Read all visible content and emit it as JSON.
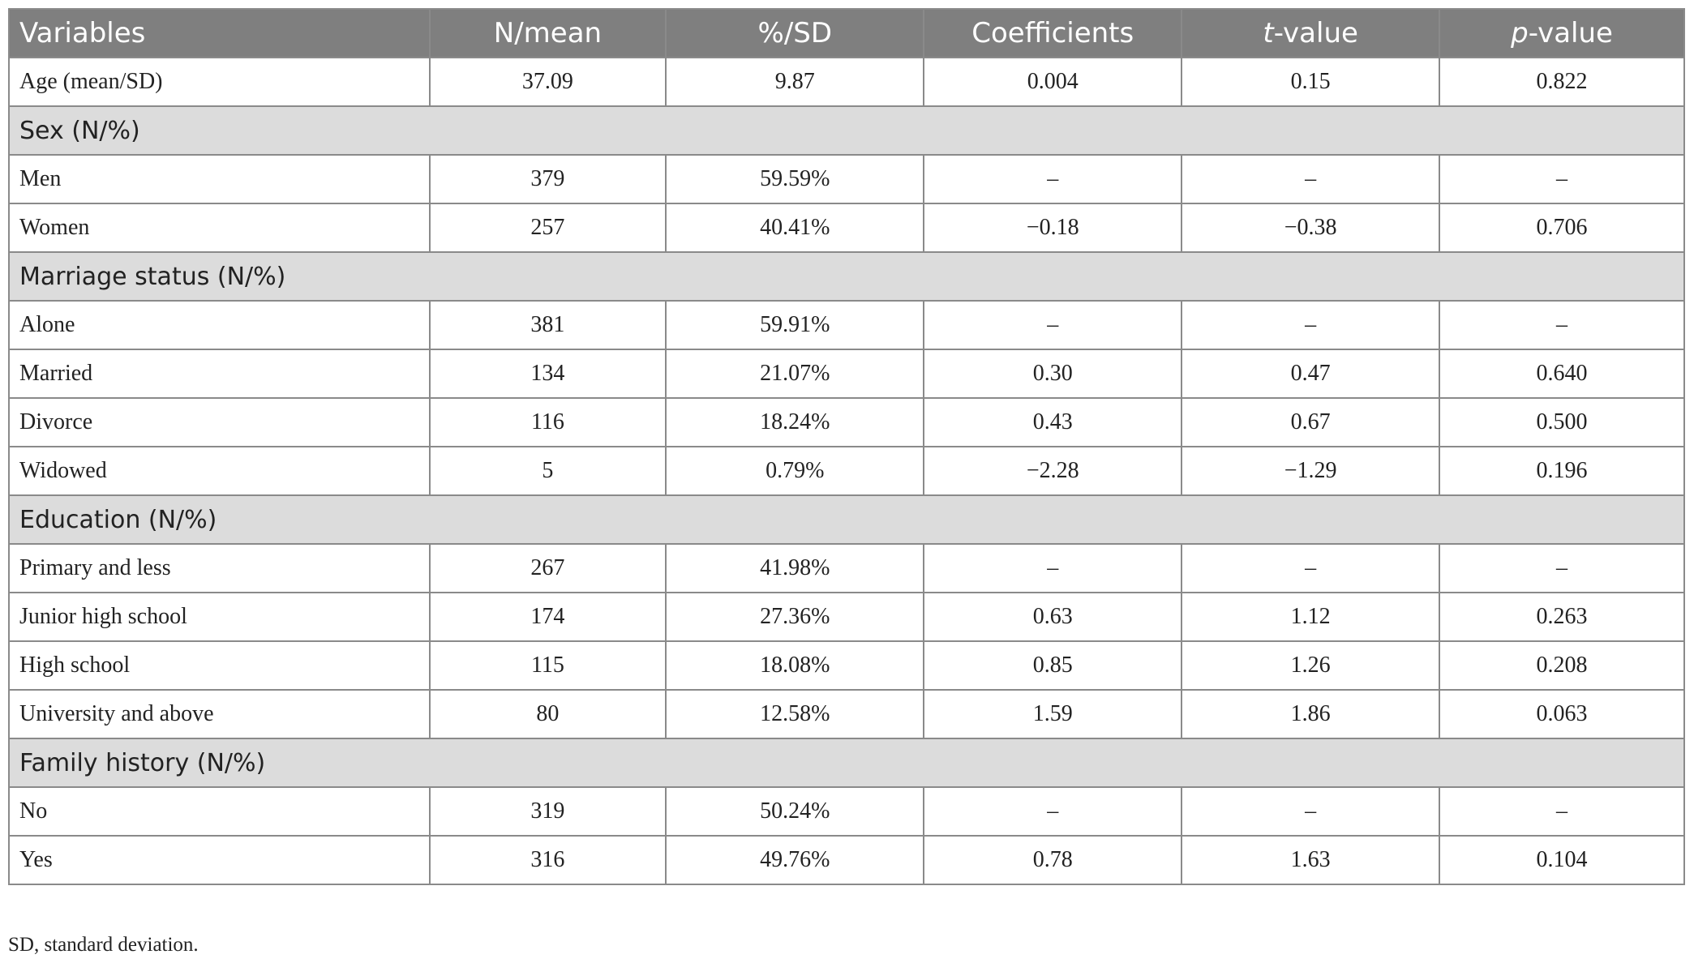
{
  "table": {
    "headers": [
      "Variables",
      "N/mean",
      "%/SD",
      "Coefficients",
      "-value",
      "-value"
    ],
    "header_italic_prefix": [
      "",
      "",
      "",
      "",
      "t",
      "p"
    ],
    "rows": [
      {
        "type": "data",
        "cells": [
          "Age (mean/SD)",
          "37.09",
          "9.87",
          "0.004",
          "0.15",
          "0.822"
        ]
      },
      {
        "type": "section",
        "label": "Sex (N/%)"
      },
      {
        "type": "data",
        "cells": [
          "Men",
          "379",
          "59.59%",
          "–",
          "–",
          "–"
        ]
      },
      {
        "type": "data",
        "cells": [
          "Women",
          "257",
          "40.41%",
          "−0.18",
          "−0.38",
          "0.706"
        ]
      },
      {
        "type": "section",
        "label": "Marriage status (N/%)"
      },
      {
        "type": "data",
        "cells": [
          "Alone",
          "381",
          "59.91%",
          "–",
          "–",
          "–"
        ]
      },
      {
        "type": "data",
        "cells": [
          "Married",
          "134",
          "21.07%",
          "0.30",
          "0.47",
          "0.640"
        ]
      },
      {
        "type": "data",
        "cells": [
          "Divorce",
          "116",
          "18.24%",
          "0.43",
          "0.67",
          "0.500"
        ]
      },
      {
        "type": "data",
        "cells": [
          "Widowed",
          "5",
          "0.79%",
          "−2.28",
          "−1.29",
          "0.196"
        ]
      },
      {
        "type": "section",
        "label": "Education (N/%)"
      },
      {
        "type": "data",
        "cells": [
          "Primary and less",
          "267",
          "41.98%",
          "–",
          "–",
          "–"
        ]
      },
      {
        "type": "data",
        "cells": [
          "Junior high school",
          "174",
          "27.36%",
          "0.63",
          "1.12",
          "0.263"
        ]
      },
      {
        "type": "data",
        "cells": [
          "High school",
          "115",
          "18.08%",
          "0.85",
          "1.26",
          "0.208"
        ]
      },
      {
        "type": "data",
        "cells": [
          "University and above",
          "80",
          "12.58%",
          "1.59",
          "1.86",
          "0.063"
        ]
      },
      {
        "type": "section",
        "label": "Family history (N/%)"
      },
      {
        "type": "data",
        "cells": [
          "No",
          "319",
          "50.24%",
          "–",
          "–",
          "–"
        ]
      },
      {
        "type": "data",
        "cells": [
          "Yes",
          "316",
          "49.76%",
          "0.78",
          "1.63",
          "0.104"
        ]
      }
    ]
  },
  "footnote": "SD, standard deviation.",
  "colors": {
    "header_bg": "#7f7f7f",
    "section_bg": "#dcdcdc",
    "border": "#8a8a8a"
  }
}
